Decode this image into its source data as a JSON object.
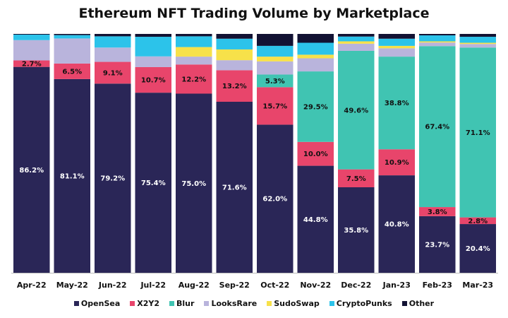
{
  "chart_data": {
    "type": "bar",
    "stacked": true,
    "title": "Ethereum NFT Trading Volume by Marketplace",
    "xlabel": "",
    "ylabel": "",
    "ylim": [
      0,
      100
    ],
    "legend_position": "bottom",
    "categories": [
      "Apr-22",
      "May-22",
      "Jun-22",
      "Jul-22",
      "Aug-22",
      "Sep-22",
      "Oct-22",
      "Nov-22",
      "Dec-22",
      "Jan-23",
      "Feb-23",
      "Mar-23"
    ],
    "series": [
      {
        "name": "OpenSea",
        "color": "#2a2657",
        "label_color": "#ffffff",
        "values": [
          86.2,
          81.1,
          79.2,
          75.4,
          75.0,
          71.6,
          62.0,
          44.8,
          35.8,
          40.8,
          23.7,
          20.4
        ],
        "labels": [
          "86.2%",
          "81.1%",
          "79.2%",
          "75.4%",
          "75.0%",
          "71.6%",
          "62.0%",
          "44.8%",
          "35.8%",
          "40.8%",
          "23.7%",
          "20.4%"
        ]
      },
      {
        "name": "X2Y2",
        "color": "#e8456b",
        "label_color": "#111111",
        "values": [
          2.7,
          6.5,
          9.1,
          10.7,
          12.2,
          13.2,
          15.7,
          10.0,
          7.5,
          10.9,
          3.8,
          2.8
        ],
        "labels": [
          "2.7%",
          "6.5%",
          "9.1%",
          "10.7%",
          "12.2%",
          "13.2%",
          "15.7%",
          "10.0%",
          "7.5%",
          "10.9%",
          "3.8%",
          "2.8%"
        ]
      },
      {
        "name": "Blur",
        "color": "#40c4b2",
        "label_color": "#111111",
        "values": [
          0,
          0,
          0,
          0,
          0,
          0,
          5.3,
          29.5,
          49.6,
          38.8,
          67.4,
          71.1
        ],
        "labels": [
          "",
          "",
          "",
          "",
          "",
          "",
          "5.3%",
          "29.5%",
          "49.6%",
          "38.8%",
          "67.4%",
          "71.1%"
        ]
      },
      {
        "name": "LooksRare",
        "color": "#b9b4dc",
        "label_color": "#111111",
        "values": [
          8.5,
          10.5,
          6.0,
          4.5,
          3.3,
          4.2,
          5.5,
          5.5,
          3.0,
          3.5,
          1.5,
          1.5
        ],
        "labels": [
          "",
          "",
          "",
          "",
          "",
          "",
          "",
          "",
          "",
          "",
          "",
          ""
        ]
      },
      {
        "name": "SudoSwap",
        "color": "#f7e14a",
        "label_color": "#111111",
        "values": [
          0,
          0,
          0,
          0,
          4.0,
          4.5,
          2.0,
          1.5,
          1.0,
          1.0,
          0.5,
          0.5
        ],
        "labels": [
          "",
          "",
          "",
          "",
          "",
          "",
          "",
          "",
          "",
          "",
          "",
          ""
        ]
      },
      {
        "name": "CryptoPunks",
        "color": "#2cc3ea",
        "label_color": "#111111",
        "values": [
          2.3,
          1.4,
          4.7,
          8.2,
          4.5,
          4.5,
          4.5,
          5.0,
          2.0,
          3.0,
          2.5,
          2.5
        ],
        "labels": [
          "",
          "",
          "",
          "",
          "",
          "",
          "",
          "",
          "",
          "",
          "",
          ""
        ]
      },
      {
        "name": "Other",
        "color": "#121233",
        "label_color": "#ffffff",
        "values": [
          0.3,
          0.5,
          1.0,
          1.2,
          1.0,
          2.0,
          5.0,
          3.7,
          1.1,
          2.0,
          0.6,
          1.2
        ],
        "labels": [
          "",
          "",
          "",
          "",
          "",
          "",
          "",
          "",
          "",
          "",
          "",
          ""
        ]
      }
    ]
  }
}
